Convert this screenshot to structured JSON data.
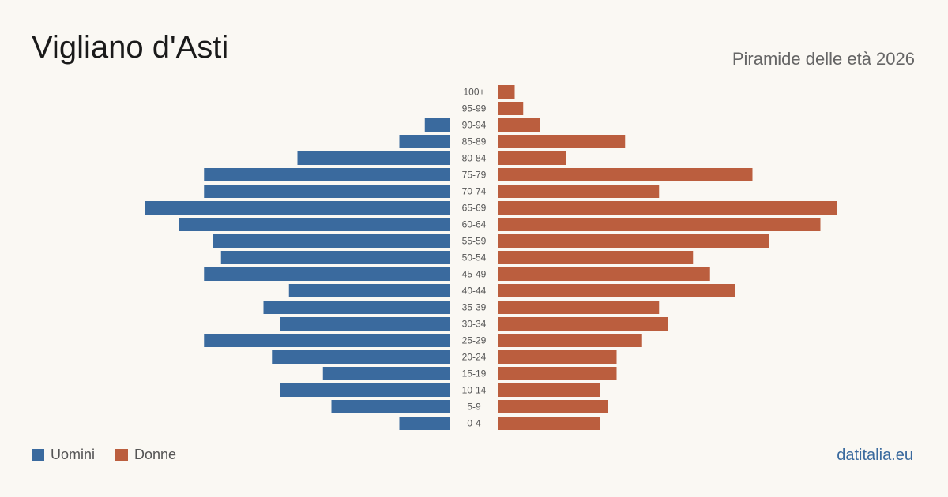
{
  "header": {
    "title": "Vigliano d'Asti",
    "subtitle": "Piramide delle età 2026"
  },
  "legend": {
    "men_label": "Uomini",
    "women_label": "Donne"
  },
  "brand": "datitalia.eu",
  "colors": {
    "men": "#3a6a9e",
    "women": "#bb5e3e",
    "background": "#faf8f3"
  },
  "chart_data": {
    "type": "bar",
    "orientation": "horizontal-pyramid",
    "categories": [
      "100+",
      "95-99",
      "90-94",
      "85-89",
      "80-84",
      "75-79",
      "70-74",
      "65-69",
      "60-64",
      "55-59",
      "50-54",
      "45-49",
      "40-44",
      "35-39",
      "30-34",
      "25-29",
      "20-24",
      "15-19",
      "10-14",
      "5-9",
      "0-4"
    ],
    "series": [
      {
        "name": "Uomini",
        "values": [
          0,
          0,
          3,
          6,
          18,
          29,
          29,
          36,
          32,
          28,
          27,
          29,
          19,
          22,
          20,
          29,
          21,
          15,
          20,
          14,
          6
        ]
      },
      {
        "name": "Donne",
        "values": [
          2,
          3,
          5,
          15,
          8,
          30,
          19,
          40,
          38,
          32,
          23,
          25,
          28,
          19,
          20,
          17,
          14,
          14,
          12,
          13,
          12
        ]
      }
    ],
    "legend_position": "bottom-left",
    "grid": false
  }
}
